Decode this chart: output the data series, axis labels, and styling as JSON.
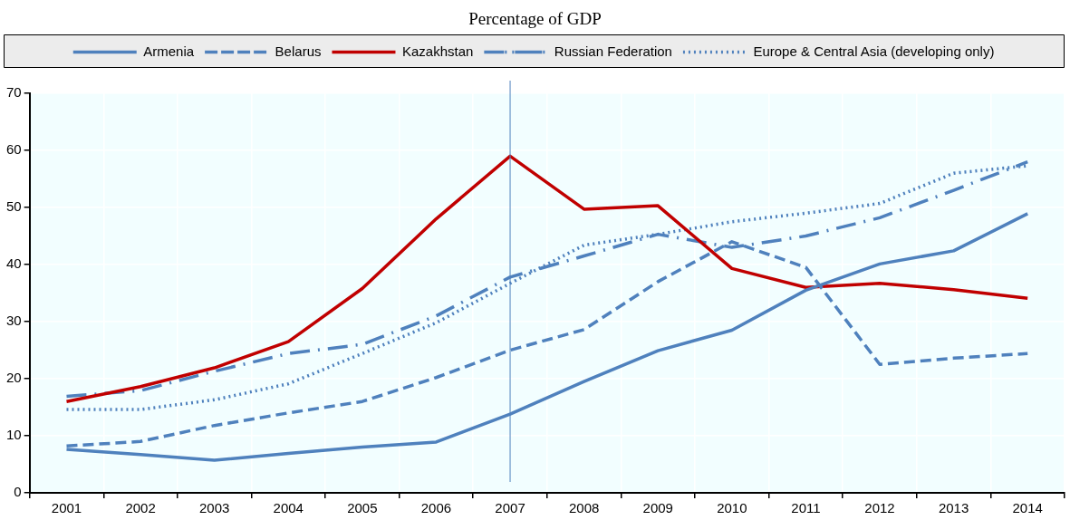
{
  "chart_data": {
    "type": "line",
    "title": "Percentage of GDP",
    "categories": [
      "2001",
      "2002",
      "2003",
      "2004",
      "2005",
      "2006",
      "2007",
      "2008",
      "2009",
      "2010",
      "2011",
      "2012",
      "2013",
      "2014"
    ],
    "series": [
      {
        "name": "Armenia",
        "color": "#4f81bd",
        "line_style": "solid",
        "values": [
          7.6,
          6.7,
          5.7,
          6.9,
          8,
          8.9,
          13.8,
          19.5,
          24.9,
          28.5,
          35.5,
          40.1,
          42.4,
          48.9
        ]
      },
      {
        "name": "Belarus",
        "color": "#4f81bd",
        "line_style": "dashed",
        "values": [
          8.2,
          9,
          11.8,
          14,
          16,
          20.2,
          25,
          28.6,
          37,
          44,
          39.5,
          22.5,
          23.6,
          24.4
        ]
      },
      {
        "name": "Kazakhstan",
        "color": "#c00000",
        "line_style": "solid",
        "values": [
          16,
          18.6,
          21.9,
          26.5,
          35.8,
          48,
          59,
          49.7,
          50.3,
          39.3,
          36,
          36.7,
          35.6,
          34.1
        ]
      },
      {
        "name": "Russian Federation",
        "color": "#4f81bd",
        "line_style": "dashdot",
        "values": [
          16.9,
          17.9,
          21.3,
          24.4,
          26,
          31,
          37.8,
          41.5,
          45.3,
          43,
          45,
          48.2,
          53,
          58
        ]
      },
      {
        "name": "Europe & Central Asia (developing only)",
        "color": "#4f81bd",
        "line_style": "dotted",
        "values": [
          14.6,
          14.6,
          16.3,
          19.1,
          24.4,
          29.8,
          36.7,
          43.4,
          45.3,
          47.5,
          49,
          50.7,
          56,
          57.3
        ]
      }
    ],
    "ylim": [
      0,
      70
    ],
    "yticks": [
      0,
      10,
      20,
      30,
      40,
      50,
      60,
      70
    ],
    "grid": true,
    "legend": "top",
    "marker": "none",
    "ref_lines": [
      {
        "axis": "x",
        "value": "2007",
        "color": "#4f81bd"
      }
    ]
  }
}
